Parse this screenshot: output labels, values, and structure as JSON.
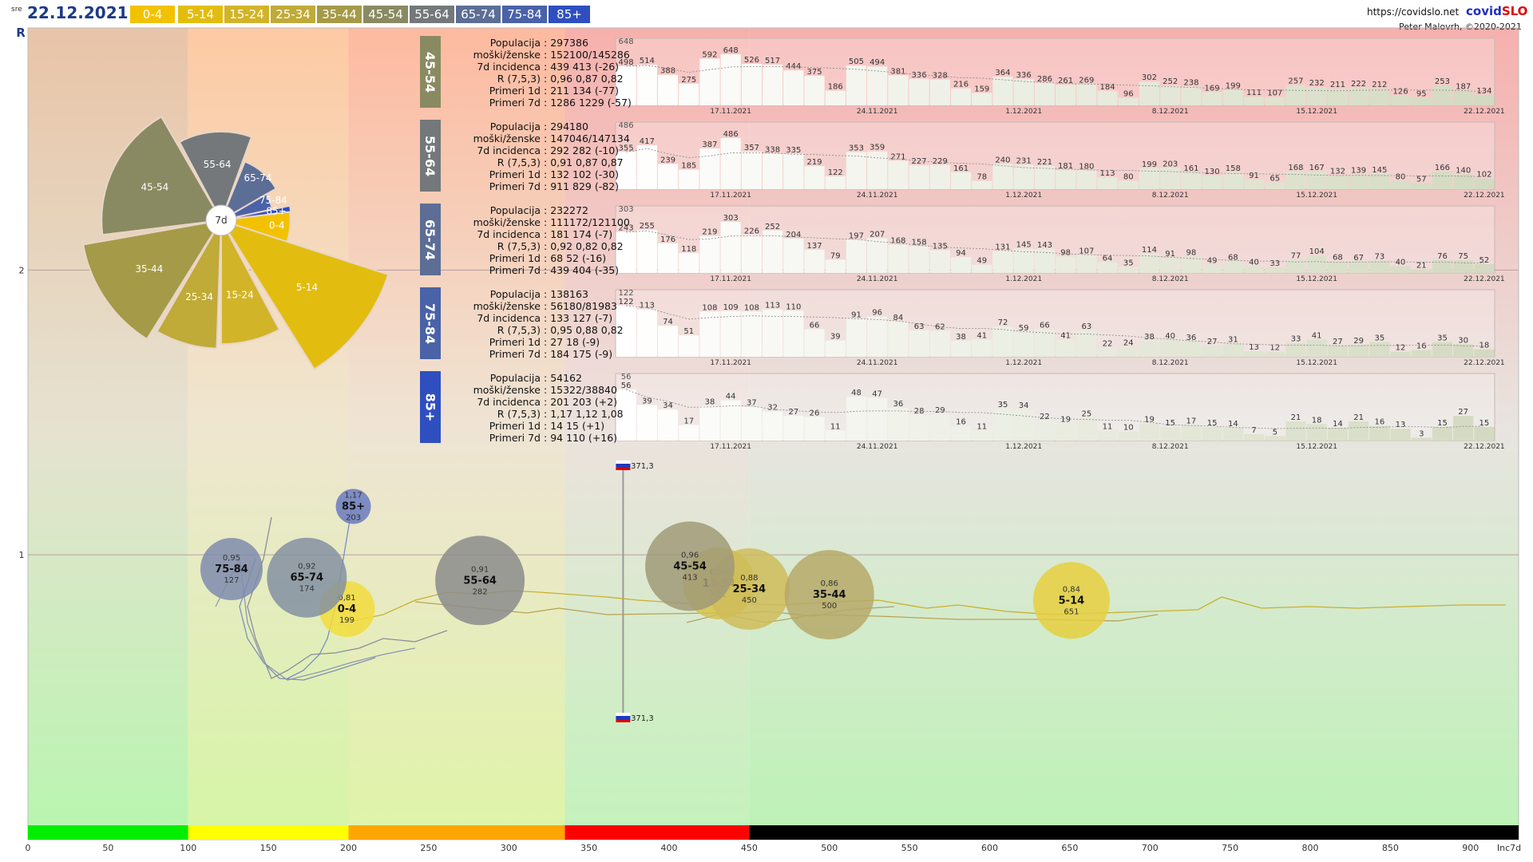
{
  "header": {
    "day": "sre",
    "date": "22.12.2021",
    "url": "https://covidslo.net",
    "brand_a": "covid",
    "brand_b": "SLO",
    "author": "Peter Malovrh, ©2020-2021"
  },
  "age_tags": [
    {
      "label": "0-4",
      "color": "#f2c200"
    },
    {
      "label": "5-14",
      "color": "#e2bd10"
    },
    {
      "label": "15-24",
      "color": "#d2b428"
    },
    {
      "label": "25-34",
      "color": "#c0aa38"
    },
    {
      "label": "35-44",
      "color": "#a59a48"
    },
    {
      "label": "45-54",
      "color": "#8a8a62"
    },
    {
      "label": "55-64",
      "color": "#74787a"
    },
    {
      "label": "65-74",
      "color": "#5c6e96"
    },
    {
      "label": "75-84",
      "color": "#4a62a8"
    },
    {
      "label": "85+",
      "color": "#2f4fc0"
    }
  ],
  "colors": {
    "zone_green": "#00ee00",
    "zone_yellow": "#ffff00",
    "zone_orange": "#ffa500",
    "zone_red": "#ff0000",
    "zone_black": "#000000"
  },
  "chart_data": [
    {
      "type": "bar",
      "title": "",
      "wedge_center_label": "7d",
      "categories": [
        "0-4",
        "5-14",
        "15-24",
        "25-34",
        "35-44",
        "45-54",
        "55-64",
        "65-74",
        "75-84",
        "85+"
      ],
      "values": [
        199,
        651,
        431,
        450,
        500,
        413,
        282,
        174,
        127,
        203
      ]
    },
    {
      "type": "bar",
      "group": "45-54",
      "stats": [
        {
          "label": "Populacija",
          "value": "297386"
        },
        {
          "label": "moški/ženske",
          "value": "152100/145286"
        },
        {
          "label": "7d incidenca",
          "value": "439 413 (-26)"
        },
        {
          "label": "R (7,5,3)",
          "value": "0,96 0,87 0,82"
        },
        {
          "label": "Primeri 1d",
          "value": "211 134 (-77)"
        },
        {
          "label": "Primeri 7d",
          "value": "1286 1229 (-57)"
        }
      ],
      "values": [
        498,
        514,
        388,
        275,
        592,
        648,
        526,
        517,
        444,
        375,
        186,
        505,
        494,
        381,
        336,
        328,
        216,
        159,
        364,
        336,
        286,
        261,
        269,
        184,
        96,
        302,
        252,
        238,
        169,
        199,
        111,
        107,
        257,
        232,
        211,
        222,
        212,
        126,
        95,
        253,
        187,
        134
      ],
      "first_label": 648,
      "date_ticks": [
        "17.11.2021",
        "24.11.2021",
        "1.12.2021",
        "8.12.2021",
        "15.12.2021",
        "22.12.2021"
      ]
    },
    {
      "type": "bar",
      "group": "55-64",
      "stats": [
        {
          "label": "Populacija",
          "value": "294180"
        },
        {
          "label": "moški/ženske",
          "value": "147046/147134"
        },
        {
          "label": "7d incidenca",
          "value": "292 282 (-10)"
        },
        {
          "label": "R (7,5,3)",
          "value": "0,91 0,87 0,87"
        },
        {
          "label": "Primeri 1d",
          "value": "132 102 (-30)"
        },
        {
          "label": "Primeri 7d",
          "value": "911 829 (-82)"
        }
      ],
      "values": [
        355,
        417,
        239,
        185,
        387,
        486,
        357,
        338,
        335,
        219,
        122,
        353,
        359,
        271,
        227,
        229,
        161,
        78,
        240,
        231,
        221,
        181,
        180,
        113,
        80,
        199,
        203,
        161,
        130,
        158,
        91,
        65,
        168,
        167,
        132,
        139,
        145,
        80,
        57,
        166,
        140,
        102
      ],
      "first_label": 486,
      "date_ticks": [
        "17.11.2021",
        "24.11.2021",
        "1.12.2021",
        "8.12.2021",
        "15.12.2021",
        "22.12.2021"
      ]
    },
    {
      "type": "bar",
      "group": "65-74",
      "stats": [
        {
          "label": "Populacija",
          "value": "232272"
        },
        {
          "label": "moški/ženske",
          "value": "111172/121100"
        },
        {
          "label": "7d incidenca",
          "value": "181 174 (-7)"
        },
        {
          "label": "R (7,5,3)",
          "value": "0,92 0,82 0,82"
        },
        {
          "label": "Primeri 1d",
          "value": "68 52 (-16)"
        },
        {
          "label": "Primeri 7d",
          "value": "439 404 (-35)"
        }
      ],
      "values": [
        243,
        255,
        176,
        118,
        219,
        303,
        226,
        252,
        204,
        137,
        79,
        197,
        207,
        168,
        158,
        135,
        94,
        49,
        131,
        145,
        143,
        98,
        107,
        64,
        35,
        114,
        91,
        98,
        49,
        68,
        40,
        33,
        77,
        104,
        68,
        67,
        73,
        40,
        21,
        76,
        75,
        52
      ],
      "first_label": 303,
      "date_ticks": [
        "17.11.2021",
        "24.11.2021",
        "1.12.2021",
        "8.12.2021",
        "15.12.2021",
        "22.12.2021"
      ]
    },
    {
      "type": "bar",
      "group": "75-84",
      "stats": [
        {
          "label": "Populacija",
          "value": "138163"
        },
        {
          "label": "moški/ženske",
          "value": "56180/81983"
        },
        {
          "label": "7d incidenca",
          "value": "133 127 (-7)"
        },
        {
          "label": "R (7,5,3)",
          "value": "0,95 0,88 0,82"
        },
        {
          "label": "Primeri 1d",
          "value": "27 18 (-9)"
        },
        {
          "label": "Primeri 7d",
          "value": "184 175 (-9)"
        }
      ],
      "values": [
        122,
        113,
        74,
        51,
        108,
        109,
        108,
        113,
        110,
        66,
        39,
        91,
        96,
        84,
        63,
        62,
        38,
        41,
        72,
        59,
        66,
        41,
        63,
        22,
        24,
        38,
        40,
        36,
        27,
        31,
        13,
        12,
        33,
        41,
        27,
        29,
        35,
        12,
        16,
        35,
        30,
        18
      ],
      "first_label": 122,
      "date_ticks": [
        "17.11.2021",
        "24.11.2021",
        "1.12.2021",
        "8.12.2021",
        "15.12.2021",
        "22.12.2021"
      ]
    },
    {
      "type": "bar",
      "group": "85+",
      "stats": [
        {
          "label": "Populacija",
          "value": "54162"
        },
        {
          "label": "moški/ženske",
          "value": "15322/38840"
        },
        {
          "label": "7d incidenca",
          "value": "201 203 (+2)"
        },
        {
          "label": "R (7,5,3)",
          "value": "1,17 1,12 1,08"
        },
        {
          "label": "Primeri 1d",
          "value": "14 15 (+1)"
        },
        {
          "label": "Primeri 7d",
          "value": "94 110 (+16)"
        }
      ],
      "values": [
        56,
        39,
        34,
        17,
        38,
        44,
        37,
        32,
        27,
        26,
        11,
        48,
        47,
        36,
        28,
        29,
        16,
        11,
        35,
        34,
        22,
        19,
        25,
        11,
        10,
        19,
        15,
        17,
        15,
        14,
        7,
        5,
        21,
        18,
        14,
        21,
        16,
        13,
        3,
        15,
        27,
        15
      ],
      "first_label": 56,
      "date_ticks": [
        "17.11.2021",
        "24.11.2021",
        "1.12.2021",
        "8.12.2021",
        "15.12.2021",
        "22.12.2021"
      ]
    },
    {
      "type": "scatter",
      "xlabel": "Inc7d",
      "ylabel": "R",
      "xlim": [
        0,
        930
      ],
      "ylim": [
        0,
        2.85
      ],
      "x_ticks": [
        0,
        50,
        100,
        150,
        200,
        250,
        300,
        350,
        400,
        450,
        500,
        550,
        600,
        650,
        700,
        750,
        800,
        850,
        900
      ],
      "y_ticks": [
        1,
        2
      ],
      "slovenia_marker": {
        "x": 371.3,
        "label": "371,3"
      },
      "points": [
        {
          "name": "0-4",
          "x": 199,
          "r": 0.81,
          "inc": "199",
          "r_label": "0,81",
          "color": "#f2dc3c"
        },
        {
          "name": "5-14",
          "x": 651,
          "r": 0.84,
          "inc": "651",
          "r_label": "0,84",
          "color": "#e6cf3e"
        },
        {
          "name": "15-24",
          "x": 431,
          "r": 0.9,
          "inc": "431",
          "r_label": "0,90",
          "color": "#d6c24e"
        },
        {
          "name": "25-34",
          "x": 450,
          "r": 0.88,
          "inc": "450",
          "r_label": "0,88",
          "color": "#cfbc5a"
        },
        {
          "name": "35-44",
          "x": 500,
          "r": 0.86,
          "inc": "500",
          "r_label": "0,86",
          "color": "#b6a968"
        },
        {
          "name": "45-54",
          "x": 413,
          "r": 0.96,
          "inc": "413",
          "r_label": "0,96",
          "color": "#a09a78"
        },
        {
          "name": "55-64",
          "x": 282,
          "r": 0.91,
          "inc": "282",
          "r_label": "0,91",
          "color": "#8c8c8c"
        },
        {
          "name": "65-74",
          "x": 174,
          "r": 0.92,
          "inc": "174",
          "r_label": "0,92",
          "color": "#8490a2"
        },
        {
          "name": "75-84",
          "x": 127,
          "r": 0.95,
          "inc": "127",
          "r_label": "0,95",
          "color": "#7f8cae"
        },
        {
          "name": "85+",
          "x": 203,
          "r": 1.17,
          "inc": "203",
          "r_label": "1,17",
          "color": "#6a7ac0"
        }
      ],
      "zones": [
        {
          "from": 0,
          "to": 100,
          "color": "#00ee00"
        },
        {
          "from": 100,
          "to": 200,
          "color": "#ffff00"
        },
        {
          "from": 200,
          "to": 335,
          "color": "#ffa500"
        },
        {
          "from": 335,
          "to": 450,
          "color": "#ff0000"
        },
        {
          "from": 450,
          "to": 930,
          "color": "#000000"
        }
      ]
    }
  ]
}
